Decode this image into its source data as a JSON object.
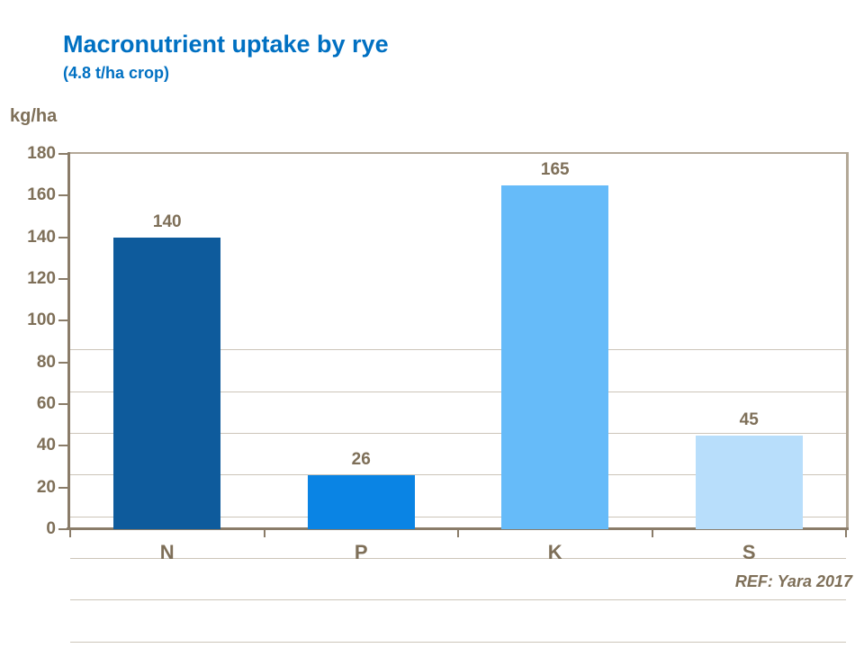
{
  "header": {
    "title": "Macronutrient uptake by rye",
    "subtitle": "(4.8 t/ha crop)"
  },
  "footer": {
    "ref": "REF: Yara 2017"
  },
  "chart_data": {
    "type": "bar",
    "title": "Macronutrient uptake by rye",
    "subtitle": "(4.8 t/ha crop)",
    "categories": [
      "N",
      "P",
      "K",
      "S"
    ],
    "values": [
      140,
      26,
      165,
      45
    ],
    "xlabel": "",
    "ylabel": "kg/ha",
    "ylim": [
      0,
      180
    ],
    "ytick_step": 20,
    "grid": true,
    "legend": false,
    "bar_colors": [
      "#0E5B9C",
      "#0A84E4",
      "#66BBF9",
      "#B8DEFB"
    ],
    "title_color": "#0070C2",
    "text_color": "#7E6F58",
    "axis_color": "#8A7C69",
    "frame_color": "#B3A897",
    "grid_color": "#CCC5B9"
  }
}
